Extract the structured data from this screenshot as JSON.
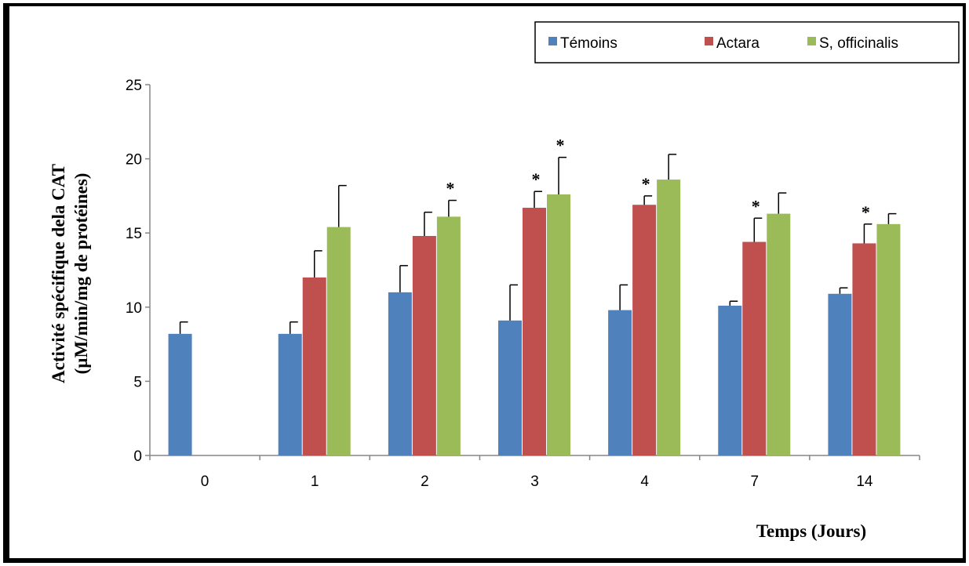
{
  "chart_data": {
    "type": "bar",
    "title": "",
    "xlabel": "Temps (Jours)",
    "ylabel_line1": "Activité spécifique dela CAT",
    "ylabel_line2": "(µM/min/mg de protéines)",
    "ylim": [
      0,
      25
    ],
    "yticks": [
      "0",
      "5",
      "10",
      "15",
      "20",
      "25"
    ],
    "categories": [
      "0",
      "1",
      "2",
      "3",
      "4",
      "7",
      "14"
    ],
    "legend_position": "top-right",
    "grid": false,
    "series": [
      {
        "name": "Témoins",
        "color": "#4f81bd",
        "values": [
          8.2,
          8.2,
          11.0,
          9.1,
          9.8,
          10.1,
          10.9
        ],
        "error": [
          0.8,
          0.8,
          1.8,
          2.4,
          1.7,
          0.3,
          0.4
        ],
        "sig": [
          "",
          "",
          "",
          "",
          "",
          "",
          ""
        ]
      },
      {
        "name": "Actara",
        "color": "#c0504d",
        "values": [
          null,
          12.0,
          14.8,
          16.7,
          16.9,
          14.4,
          14.3
        ],
        "error": [
          null,
          1.8,
          1.6,
          1.1,
          0.6,
          1.6,
          1.3
        ],
        "sig": [
          "",
          "",
          "",
          "*",
          "*",
          "*",
          "*"
        ]
      },
      {
        "name": "S, officinalis",
        "color": "#9bbb59",
        "values": [
          null,
          15.4,
          16.1,
          17.6,
          18.6,
          16.3,
          15.6
        ],
        "error": [
          null,
          2.8,
          1.1,
          2.5,
          1.7,
          1.4,
          0.7
        ],
        "sig": [
          "",
          "",
          "*",
          "*",
          "",
          "",
          ""
        ]
      }
    ]
  }
}
